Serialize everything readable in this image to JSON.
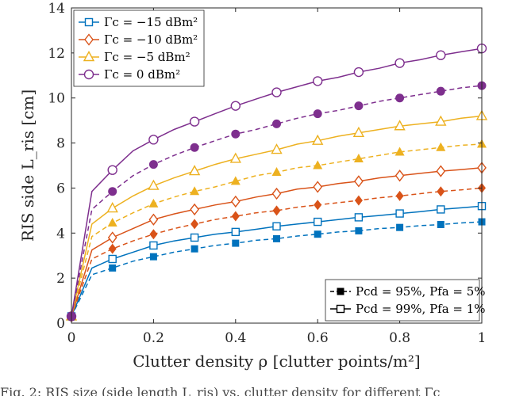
{
  "chart_data": {
    "type": "line",
    "xlabel": "Clutter density ρ [clutter points/m²]",
    "ylabel": "RIS side L_ris [cm]",
    "xlim": [
      0,
      1
    ],
    "ylim": [
      0,
      14
    ],
    "xticks": [
      0,
      0.2,
      0.4,
      0.6,
      0.8,
      1
    ],
    "xtick_labels": [
      "0",
      "0.2",
      "0.4",
      "0.6",
      "0.8",
      "1"
    ],
    "yticks": [
      0,
      2,
      4,
      6,
      8,
      10,
      12,
      14
    ],
    "ytick_labels": [
      "0",
      "2",
      "4",
      "6",
      "8",
      "10",
      "12",
      "14"
    ],
    "grid": false,
    "x": [
      0,
      0.05,
      0.1,
      0.15,
      0.2,
      0.25,
      0.3,
      0.35,
      0.4,
      0.45,
      0.5,
      0.55,
      0.6,
      0.65,
      0.7,
      0.75,
      0.8,
      0.85,
      0.9,
      0.95,
      1
    ],
    "marker_x": [
      0,
      0.1,
      0.2,
      0.3,
      0.4,
      0.5,
      0.6,
      0.7,
      0.8,
      0.9,
      1
    ],
    "series": [
      {
        "name": "Γc = −15 dBm², Pcd = 99%, Pfa = 1%",
        "gamma": "−15",
        "color": "#0072BD",
        "marker": "square",
        "style": "solid",
        "values": [
          0.3,
          2.45,
          2.85,
          3.15,
          3.45,
          3.65,
          3.8,
          3.95,
          4.05,
          4.17,
          4.3,
          4.4,
          4.5,
          4.6,
          4.7,
          4.78,
          4.87,
          4.95,
          5.05,
          5.12,
          5.2
        ]
      },
      {
        "name": "Γc = −15 dBm², Pcd = 95%, Pfa = 5%",
        "gamma": "−15",
        "color": "#0072BD",
        "marker": "square",
        "style": "dashed",
        "values": [
          0.3,
          2.15,
          2.45,
          2.75,
          2.95,
          3.15,
          3.3,
          3.45,
          3.55,
          3.68,
          3.75,
          3.87,
          3.95,
          4.05,
          4.1,
          4.2,
          4.25,
          4.33,
          4.38,
          4.45,
          4.5
        ]
      },
      {
        "name": "Γc = −10 dBm², Pcd = 99%, Pfa = 1%",
        "gamma": "−10",
        "color": "#D95319",
        "marker": "diamond",
        "style": "solid",
        "values": [
          0.3,
          3.25,
          3.8,
          4.2,
          4.6,
          4.85,
          5.05,
          5.25,
          5.4,
          5.6,
          5.75,
          5.95,
          6.05,
          6.2,
          6.3,
          6.45,
          6.55,
          6.65,
          6.75,
          6.82,
          6.9
        ]
      },
      {
        "name": "Γc = −10 dBm², Pcd = 95%, Pfa = 5%",
        "gamma": "−10",
        "color": "#D95319",
        "marker": "diamond",
        "style": "dashed",
        "values": [
          0.3,
          2.85,
          3.3,
          3.65,
          3.95,
          4.2,
          4.4,
          4.6,
          4.75,
          4.9,
          5.0,
          5.15,
          5.25,
          5.35,
          5.45,
          5.57,
          5.65,
          5.75,
          5.85,
          5.92,
          6.0
        ]
      },
      {
        "name": "Γc = −5 dBm², Pcd = 99%, Pfa = 1%",
        "gamma": "−5",
        "color": "#EDB120",
        "marker": "triangle",
        "style": "solid",
        "values": [
          0.3,
          4.4,
          5.1,
          5.65,
          6.1,
          6.45,
          6.75,
          7.05,
          7.3,
          7.5,
          7.7,
          7.95,
          8.1,
          8.3,
          8.45,
          8.6,
          8.75,
          8.85,
          8.95,
          9.1,
          9.2
        ]
      },
      {
        "name": "Γc = −5 dBm², Pcd = 95%, Pfa = 5%",
        "gamma": "−5",
        "color": "#EDB120",
        "marker": "triangle",
        "style": "dashed",
        "values": [
          0.3,
          3.85,
          4.45,
          4.9,
          5.3,
          5.6,
          5.85,
          6.05,
          6.3,
          6.55,
          6.7,
          6.9,
          7.0,
          7.15,
          7.3,
          7.45,
          7.6,
          7.7,
          7.8,
          7.9,
          7.95
        ]
      },
      {
        "name": "Γc = 0 dBm², Pcd = 99%, Pfa = 1%",
        "gamma": "0",
        "color": "#7E2F8E",
        "marker": "circle",
        "style": "solid",
        "values": [
          0.3,
          5.85,
          6.8,
          7.65,
          8.15,
          8.6,
          8.95,
          9.3,
          9.65,
          9.95,
          10.25,
          10.5,
          10.75,
          10.92,
          11.15,
          11.32,
          11.55,
          11.7,
          11.9,
          12.05,
          12.2
        ]
      },
      {
        "name": "Γc = 0 dBm², Pcd = 95%, Pfa = 5%",
        "gamma": "0",
        "color": "#7E2F8E",
        "marker": "circle",
        "style": "dashed",
        "values": [
          0.3,
          5.05,
          5.85,
          6.55,
          7.05,
          7.45,
          7.8,
          8.1,
          8.4,
          8.6,
          8.85,
          9.1,
          9.3,
          9.45,
          9.65,
          9.85,
          10.0,
          10.15,
          10.3,
          10.45,
          10.55
        ]
      }
    ],
    "legend_top": [
      {
        "label": "Γc = −15 dBm²",
        "color": "#0072BD",
        "marker": "square"
      },
      {
        "label": "Γc = −10 dBm²",
        "color": "#D95319",
        "marker": "diamond"
      },
      {
        "label": "Γc = −5 dBm²",
        "color": "#EDB120",
        "marker": "triangle"
      },
      {
        "label": "Γc = 0 dBm²",
        "color": "#7E2F8E",
        "marker": "circle"
      }
    ],
    "legend_bottom": [
      {
        "label": "Pcd = 95%, Pfa = 5%",
        "style": "dashed",
        "filled": true
      },
      {
        "label": "Pcd = 99%, Pfa = 1%",
        "style": "solid",
        "filled": false
      }
    ],
    "legend_top_placement": "top-left",
    "legend_bottom_placement": "bottom-right"
  },
  "caption": "Fig. 2: RIS size (side length L_ris) vs. clutter density for different Γc"
}
